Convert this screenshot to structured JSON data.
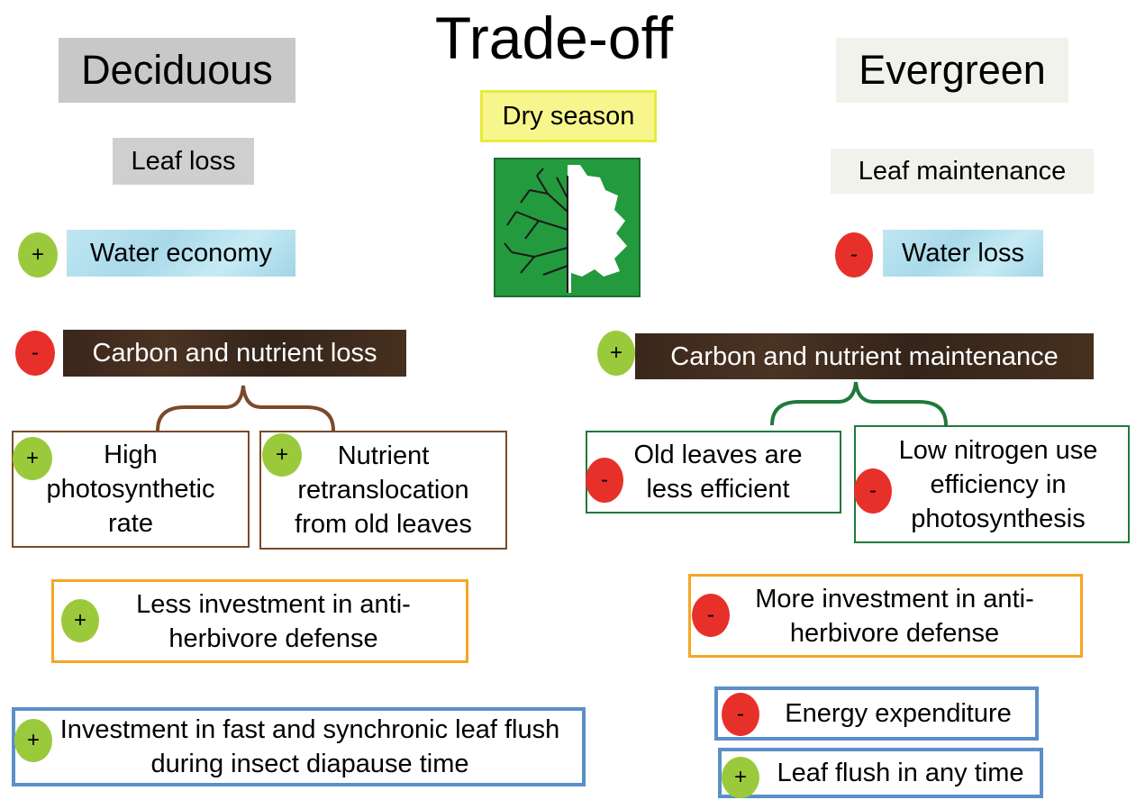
{
  "title": "Trade-off",
  "center": {
    "label": "Dry season"
  },
  "deciduous": {
    "heading": "Deciduous",
    "strategy": "Leaf loss",
    "water": {
      "sign": "+",
      "label": "Water economy"
    },
    "carbon": {
      "sign": "-",
      "label": "Carbon and nutrient loss"
    },
    "sub": [
      {
        "sign": "+",
        "label": "High photosynthetic rate"
      },
      {
        "sign": "+",
        "label": "Nutrient retranslocation from old leaves"
      }
    ],
    "defense": {
      "sign": "+",
      "label": "Less investment in anti-herbivore defense"
    },
    "flush": {
      "sign": "+",
      "label": "Investment in fast and synchronic leaf flush during insect diapause time"
    }
  },
  "evergreen": {
    "heading": "Evergreen",
    "strategy": "Leaf maintenance",
    "water": {
      "sign": "-",
      "label": "Water loss"
    },
    "carbon": {
      "sign": "+",
      "label": "Carbon and nutrient maintenance"
    },
    "sub": [
      {
        "sign": "-",
        "label": "Old leaves are less efficient"
      },
      {
        "sign": "-",
        "label": "Low nitrogen use efficiency in photosynthesis"
      }
    ],
    "defense": {
      "sign": "-",
      "label": "More investment in anti-herbivore defense"
    },
    "energy": {
      "sign": "-",
      "label": "Energy expenditure"
    },
    "flush": {
      "sign": "+",
      "label": "Leaf flush in any time"
    }
  }
}
